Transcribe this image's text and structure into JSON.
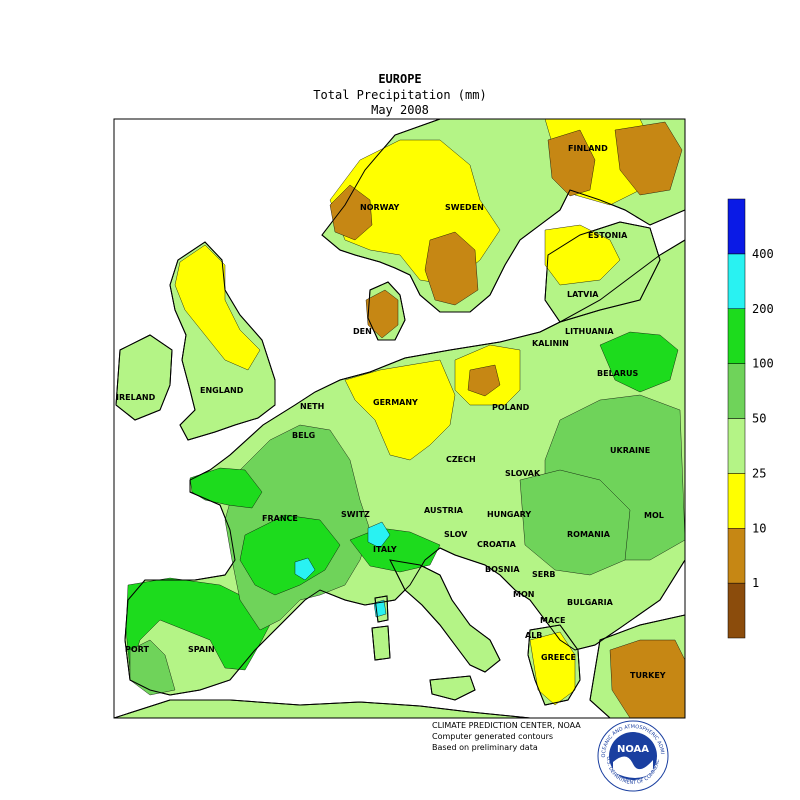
{
  "title": {
    "region": "EUROPE",
    "variable": "Total Precipitation (mm)",
    "period": "May 2008"
  },
  "colors": {
    "lt1": "#8b4c0c",
    "1_10": "#c68714",
    "10_25": "#ffff00",
    "25_50": "#b4f486",
    "50_100": "#6fd35a",
    "100_200": "#1ddb1d",
    "200_400": "#29f2f2",
    "gt400": "#0a1ae6",
    "water": "#ffffff",
    "outline": "#000000"
  },
  "legend": {
    "thresholds": [
      "400",
      "200",
      "100",
      "50",
      "25",
      "10",
      "1"
    ]
  },
  "country_labels": [
    "FINLAND",
    "NORWAY",
    "SWEDEN",
    "ESTONIA",
    "LATVIA",
    "LITHUANIA",
    "KALININ",
    "BELARUS",
    "DEN",
    "IRELAND",
    "ENGLAND",
    "NETH",
    "GERMANY",
    "POLAND",
    "BELG",
    "UKRAINE",
    "CZECH",
    "SLOVAK",
    "FRANCE",
    "SWITZ",
    "AUSTRIA",
    "HUNGARY",
    "MOL",
    "ROMANIA",
    "SLOV",
    "CROATIA",
    "ITALY",
    "BOSNIA",
    "SERB",
    "MON",
    "BULGARIA",
    "MACE",
    "ALB",
    "GREECE",
    "TURKEY",
    "PORT",
    "SPAIN"
  ],
  "credits": {
    "line1": "CLIMATE PREDICTION CENTER, NOAA",
    "line2": "Computer generated contours",
    "line3": "Based on preliminary data",
    "logo_text": "NOAA",
    "logo_ring_top": "NATIONAL OCEANIC AND ATMOSPHERIC ADMINISTRATION",
    "logo_ring_bottom": "U.S. DEPARTMENT OF COMMERCE"
  }
}
